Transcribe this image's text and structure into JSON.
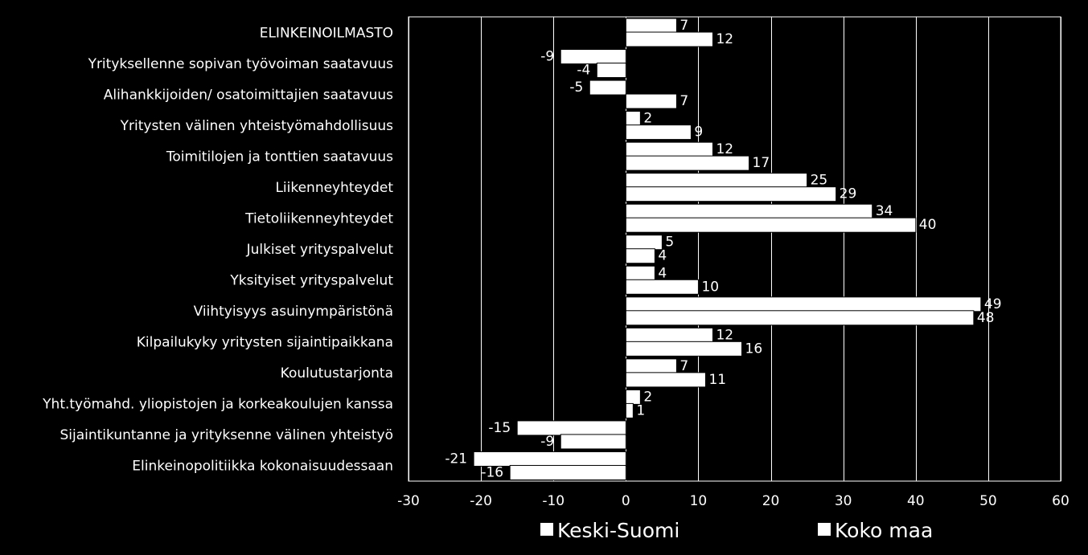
{
  "chart_data": {
    "type": "bar",
    "orientation": "horizontal",
    "categories": [
      "ELINKEINOILMASTO",
      "Yrityksellenne sopivan työvoiman saatavuus",
      "Alihankkijoiden/ osatoimittajien saatavuus",
      "Yritysten välinen yhteistyömahdollisuus",
      "Toimitilojen ja tonttien saatavuus",
      "Liikenneyhteydet",
      "Tietoliikenneyhteydet",
      "Julkiset yrityspalvelut",
      "Yksityiset yrityspalvelut",
      "Viihtyisyys asuinympäristönä",
      "Kilpailukyky yritysten sijaintipaikkana",
      "Koulutustarjonta",
      "Yht.työmahd. yliopistojen ja korkeakoulujen kanssa",
      "Sijaintikuntanne ja yrityksenne välinen yhteistyö",
      "Elinkeinopolitiikka kokonaisuudessaan"
    ],
    "series": [
      {
        "name": "Keski-Suomi",
        "values": [
          7,
          -9,
          -5,
          2,
          12,
          25,
          34,
          5,
          4,
          49,
          12,
          7,
          2,
          -15,
          -21
        ]
      },
      {
        "name": "Koko maa",
        "values": [
          12,
          -4,
          7,
          9,
          17,
          29,
          40,
          4,
          10,
          48,
          16,
          11,
          1,
          -9,
          -16
        ]
      }
    ],
    "xlim": [
      -30,
      60
    ],
    "xticks": [
      -30,
      -20,
      -10,
      0,
      10,
      20,
      30,
      40,
      50,
      60
    ],
    "grid": "vertical",
    "legend": "bottom",
    "colors": {
      "background": "#000000",
      "bars": "#ffffff",
      "bar_outline": "#000000",
      "grid": "#ffffff",
      "text": "#ffffff"
    }
  }
}
